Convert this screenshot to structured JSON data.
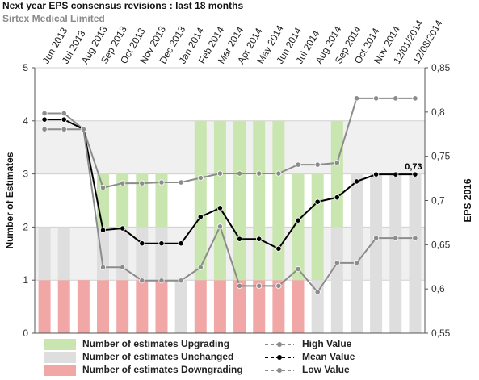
{
  "header": {
    "title": "Next year EPS consensus revisions : last 18 months",
    "subtitle": "Sirtex Medical Limited"
  },
  "colors": {
    "upgrading": "#c9e5b0",
    "unchanged": "#dedede",
    "downgrading": "#f2a7a7",
    "high_low_line": "#8c8c8c",
    "mean_line": "#000000",
    "band": "#f0f0f0",
    "grid": "#d0d0d0"
  },
  "chart_data": {
    "type": "bar",
    "categories": [
      "Jun 2013",
      "Jul 2013",
      "Aug 2013",
      "Sep 2013",
      "Oct 2013",
      "Nov 2013",
      "Dec 2013",
      "Jan 2014",
      "Feb 2014",
      "Mar 2014",
      "Apr 2014",
      "May 2014",
      "Jun 2014",
      "Jul 2014",
      "Aug 2014",
      "Sep 2014",
      "Oct 2014",
      "Nov 2014",
      "12/01/2014",
      "12/08/2014"
    ],
    "left_axis": {
      "label": "Number of Estimates",
      "min": 0,
      "max": 5,
      "ticks": [
        "0",
        "1",
        "2",
        "3",
        "4",
        "5"
      ]
    },
    "right_axis": {
      "label": "EPS 2016",
      "min": 0.55,
      "max": 0.85,
      "ticks": [
        "0,55",
        "0,6",
        "0,65",
        "0,7",
        "0,75",
        "0,8",
        "0,85"
      ]
    },
    "bar_series": [
      {
        "name": "Number of estimates Downgrading",
        "values": [
          1,
          1,
          1,
          1,
          1,
          1,
          1,
          0,
          1,
          1,
          1,
          1,
          1,
          1,
          0,
          0,
          0,
          0,
          0,
          0
        ]
      },
      {
        "name": "Number of estimates Unchanged",
        "values": [
          1,
          1,
          0,
          1,
          1,
          1,
          1,
          1,
          0,
          0,
          0,
          0,
          0,
          0,
          1,
          2,
          3,
          3,
          3,
          3
        ]
      },
      {
        "name": "Number of estimates Upgrading",
        "values": [
          0,
          0,
          0,
          1,
          1,
          1,
          1,
          0,
          3,
          3,
          3,
          3,
          3,
          2,
          2,
          2,
          0,
          0,
          0,
          0
        ]
      }
    ],
    "line_series": [
      {
        "name": "High Value",
        "values": [
          0.7985,
          0.7985,
          0.7805,
          0.7145,
          0.7195,
          0.7195,
          0.7205,
          0.7205,
          0.7255,
          0.7305,
          0.7305,
          0.7305,
          0.7305,
          0.7405,
          0.7405,
          0.7425,
          0.8155,
          0.8155,
          0.8155,
          0.8155
        ]
      },
      {
        "name": "Mean Value",
        "values": [
          0.7915,
          0.7915,
          0.7805,
          0.6665,
          0.6685,
          0.6515,
          0.6515,
          0.6515,
          0.6815,
          0.6915,
          0.6565,
          0.6565,
          0.6455,
          0.6775,
          0.6985,
          0.7035,
          0.7215,
          0.7295,
          0.7295,
          0.7295
        ]
      },
      {
        "name": "Low Value",
        "values": [
          0.7805,
          0.7805,
          0.7805,
          0.6245,
          0.6245,
          0.6095,
          0.6095,
          0.6095,
          0.6245,
          0.6705,
          0.6035,
          0.6035,
          0.6035,
          0.6225,
          0.5965,
          0.6295,
          0.6295,
          0.6575,
          0.6575,
          0.6575
        ]
      }
    ],
    "annotations": [
      {
        "text": "0,73"
      }
    ],
    "legend_placement": "bottom"
  }
}
